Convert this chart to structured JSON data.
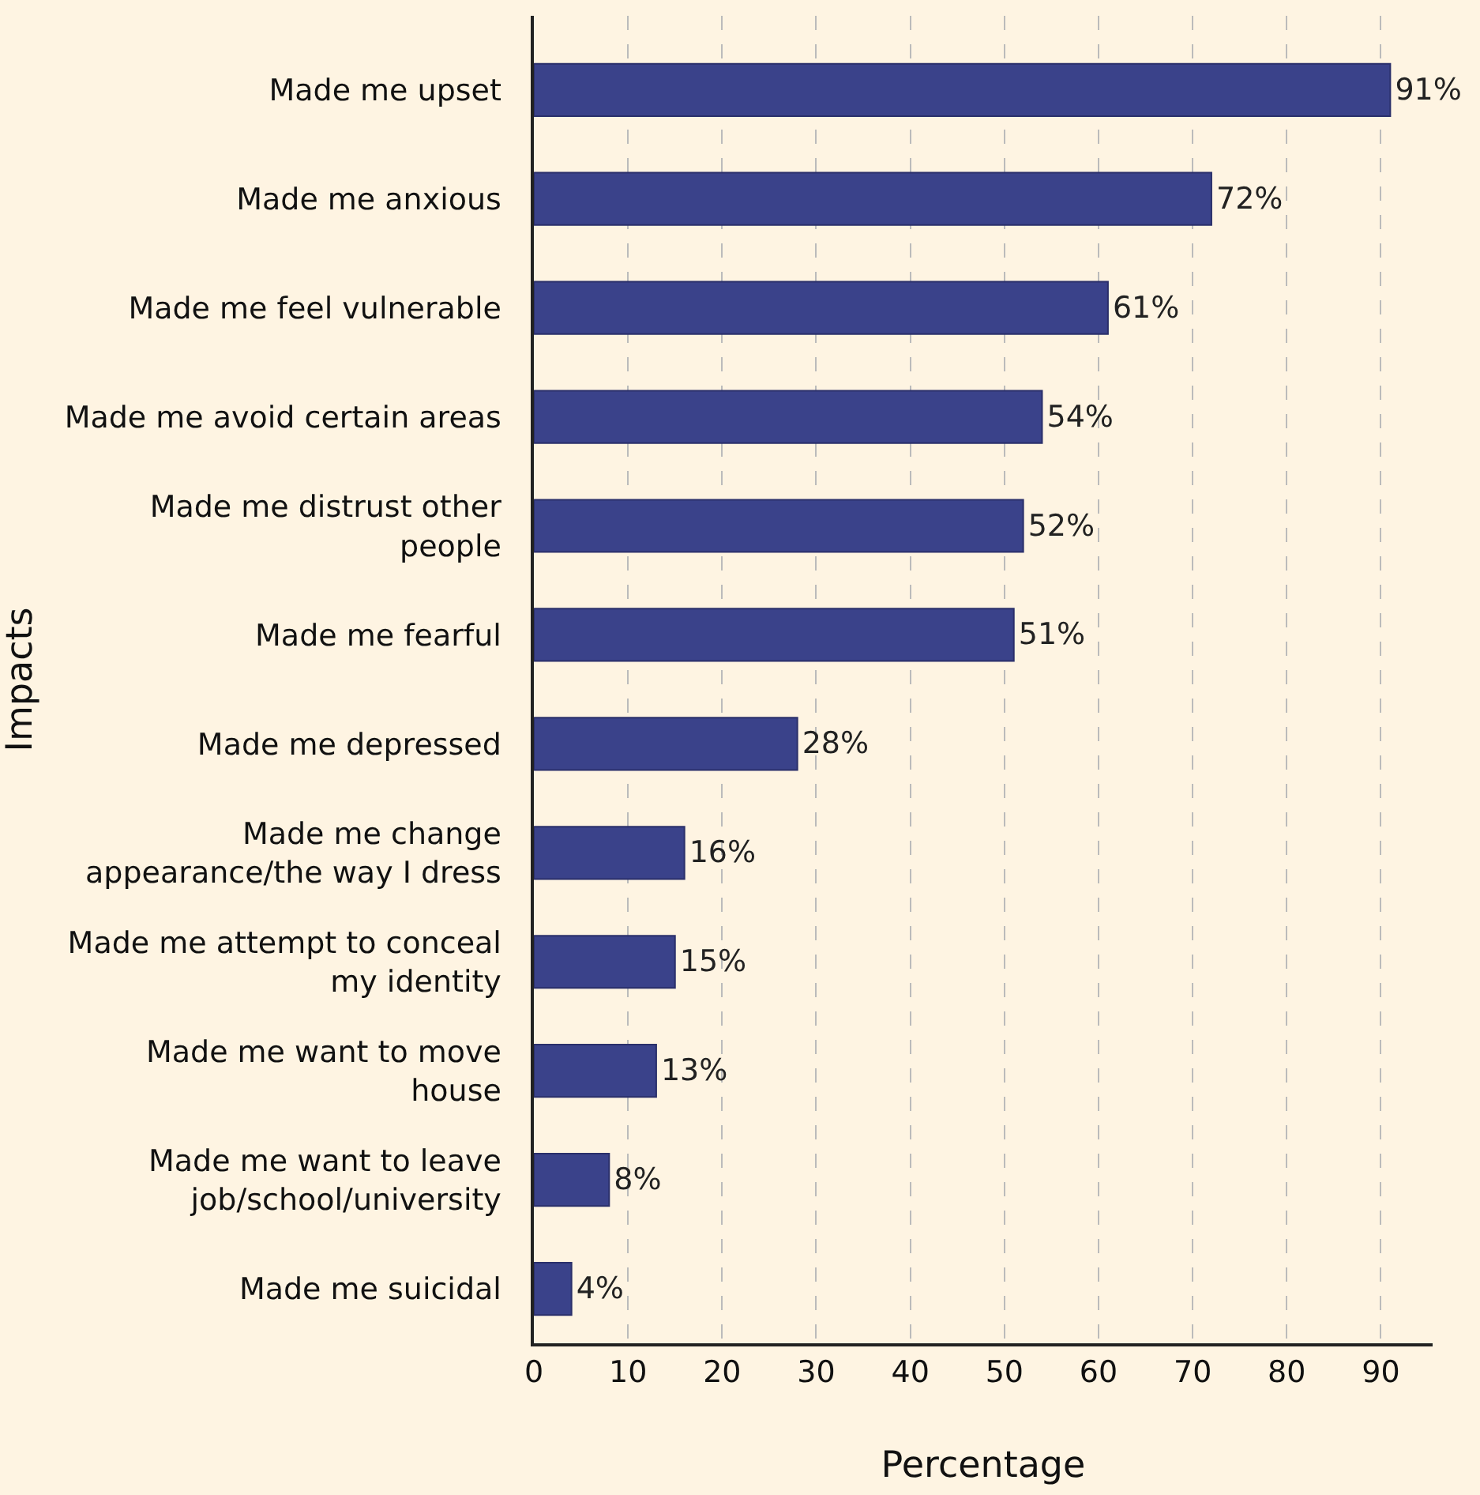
{
  "chart_data": {
    "type": "bar",
    "orientation": "horizontal",
    "xlabel": "Percentage",
    "ylabel": "Impacts",
    "categories": [
      "Made me upset",
      "Made me anxious",
      "Made me feel vulnerable",
      "Made me avoid certain areas",
      "Made me distrust other\npeople",
      "Made me fearful",
      "Made me depressed",
      "Made me change\nappearance/the way I dress",
      "Made me attempt to conceal\nmy identity",
      "Made me want to move\nhouse",
      "Made me want to leave\njob/school/university",
      "Made me suicidal"
    ],
    "values": [
      91,
      72,
      61,
      54,
      52,
      51,
      28,
      16,
      15,
      13,
      8,
      4
    ],
    "value_labels": [
      "91%",
      "72%",
      "61%",
      "54%",
      "52%",
      "51%",
      "28%",
      "16%",
      "15%",
      "13%",
      "8%",
      "4%"
    ],
    "color": "#3a428a",
    "xlim": [
      0,
      95.5
    ],
    "xticks": [
      0,
      10,
      20,
      30,
      40,
      50,
      60,
      70,
      80,
      90
    ],
    "grid": "x",
    "legend": false
  }
}
